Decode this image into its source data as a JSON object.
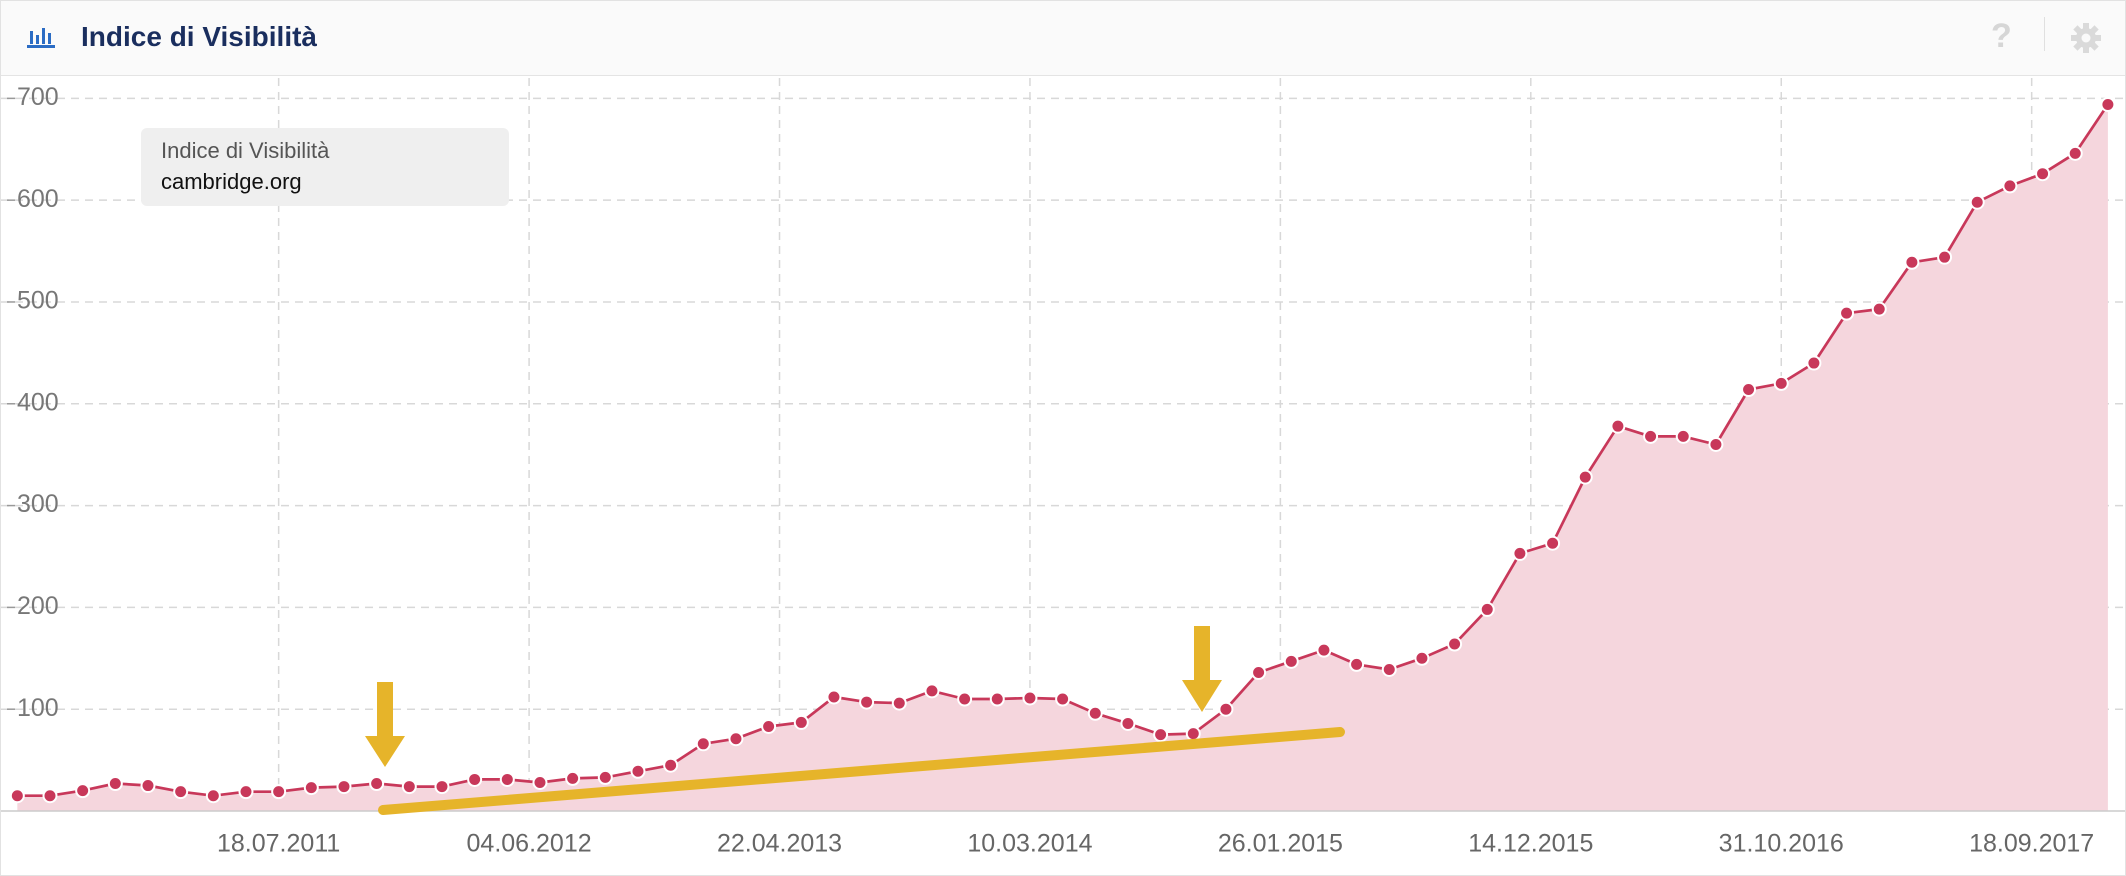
{
  "header": {
    "title": "Indice di Visibilità",
    "help_icon": "?"
  },
  "chart_data": {
    "type": "area",
    "title": "Indice di Visibilità",
    "x": [
      "16.08.2010",
      "27.09.2010",
      "08.11.2010",
      "20.12.2010",
      "31.01.2011",
      "14.03.2011",
      "25.04.2011",
      "06.06.2011",
      "18.07.2011",
      "29.08.2011",
      "10.10.2011",
      "21.11.2011",
      "02.01.2012",
      "13.02.2012",
      "26.03.2012",
      "07.05.2012",
      "18.06.2012",
      "30.07.2012",
      "10.09.2012",
      "22.10.2012",
      "03.12.2012",
      "14.01.2013",
      "25.02.2013",
      "08.04.2013",
      "20.05.2013",
      "01.07.2013",
      "12.08.2013",
      "23.09.2013",
      "04.11.2013",
      "16.12.2013",
      "27.01.2014",
      "10.03.2014",
      "21.04.2014",
      "02.06.2014",
      "14.07.2014",
      "25.08.2014",
      "06.10.2014",
      "17.11.2014",
      "29.12.2014",
      "09.02.2015",
      "23.03.2015",
      "04.05.2015",
      "15.06.2015",
      "27.07.2015",
      "07.09.2015",
      "19.10.2015",
      "30.11.2015",
      "11.01.2016",
      "22.02.2016",
      "04.04.2016",
      "16.05.2016",
      "27.06.2016",
      "08.08.2016",
      "19.09.2016",
      "31.10.2016",
      "12.12.2016",
      "23.01.2017",
      "06.03.2017",
      "17.04.2017",
      "29.05.2017",
      "10.07.2017",
      "21.08.2017",
      "02.10.2017",
      "13.11.2017",
      "25.12.2017"
    ],
    "series": [
      {
        "name": "cambridge.org",
        "color": "#c8385a",
        "fill": "#f5d6dd",
        "values": [
          15,
          15,
          20,
          27,
          25,
          19,
          15,
          19,
          19,
          23,
          24,
          27,
          24,
          24,
          31,
          31,
          28,
          32,
          33,
          39,
          45,
          66,
          71,
          83,
          87,
          112,
          107,
          106,
          118,
          110,
          110,
          111,
          110,
          96,
          86,
          75,
          76,
          100,
          136,
          147,
          158,
          144,
          139,
          150,
          164,
          198,
          253,
          263,
          328,
          378,
          368,
          368,
          360,
          414,
          420,
          440,
          489,
          493,
          539,
          544,
          598,
          614,
          626,
          646,
          694
        ]
      }
    ],
    "xlim": [
      "26.07.2010",
      "16.01.2018"
    ],
    "xticks": [
      "18.07.2011",
      "04.06.2012",
      "22.04.2013",
      "10.03.2014",
      "26.01.2015",
      "14.12.2015",
      "31.10.2016",
      "18.09.2017"
    ],
    "ylim": [
      0,
      720
    ],
    "yticks": [
      100,
      200,
      300,
      400,
      500,
      600,
      700
    ],
    "grid": true
  }
}
